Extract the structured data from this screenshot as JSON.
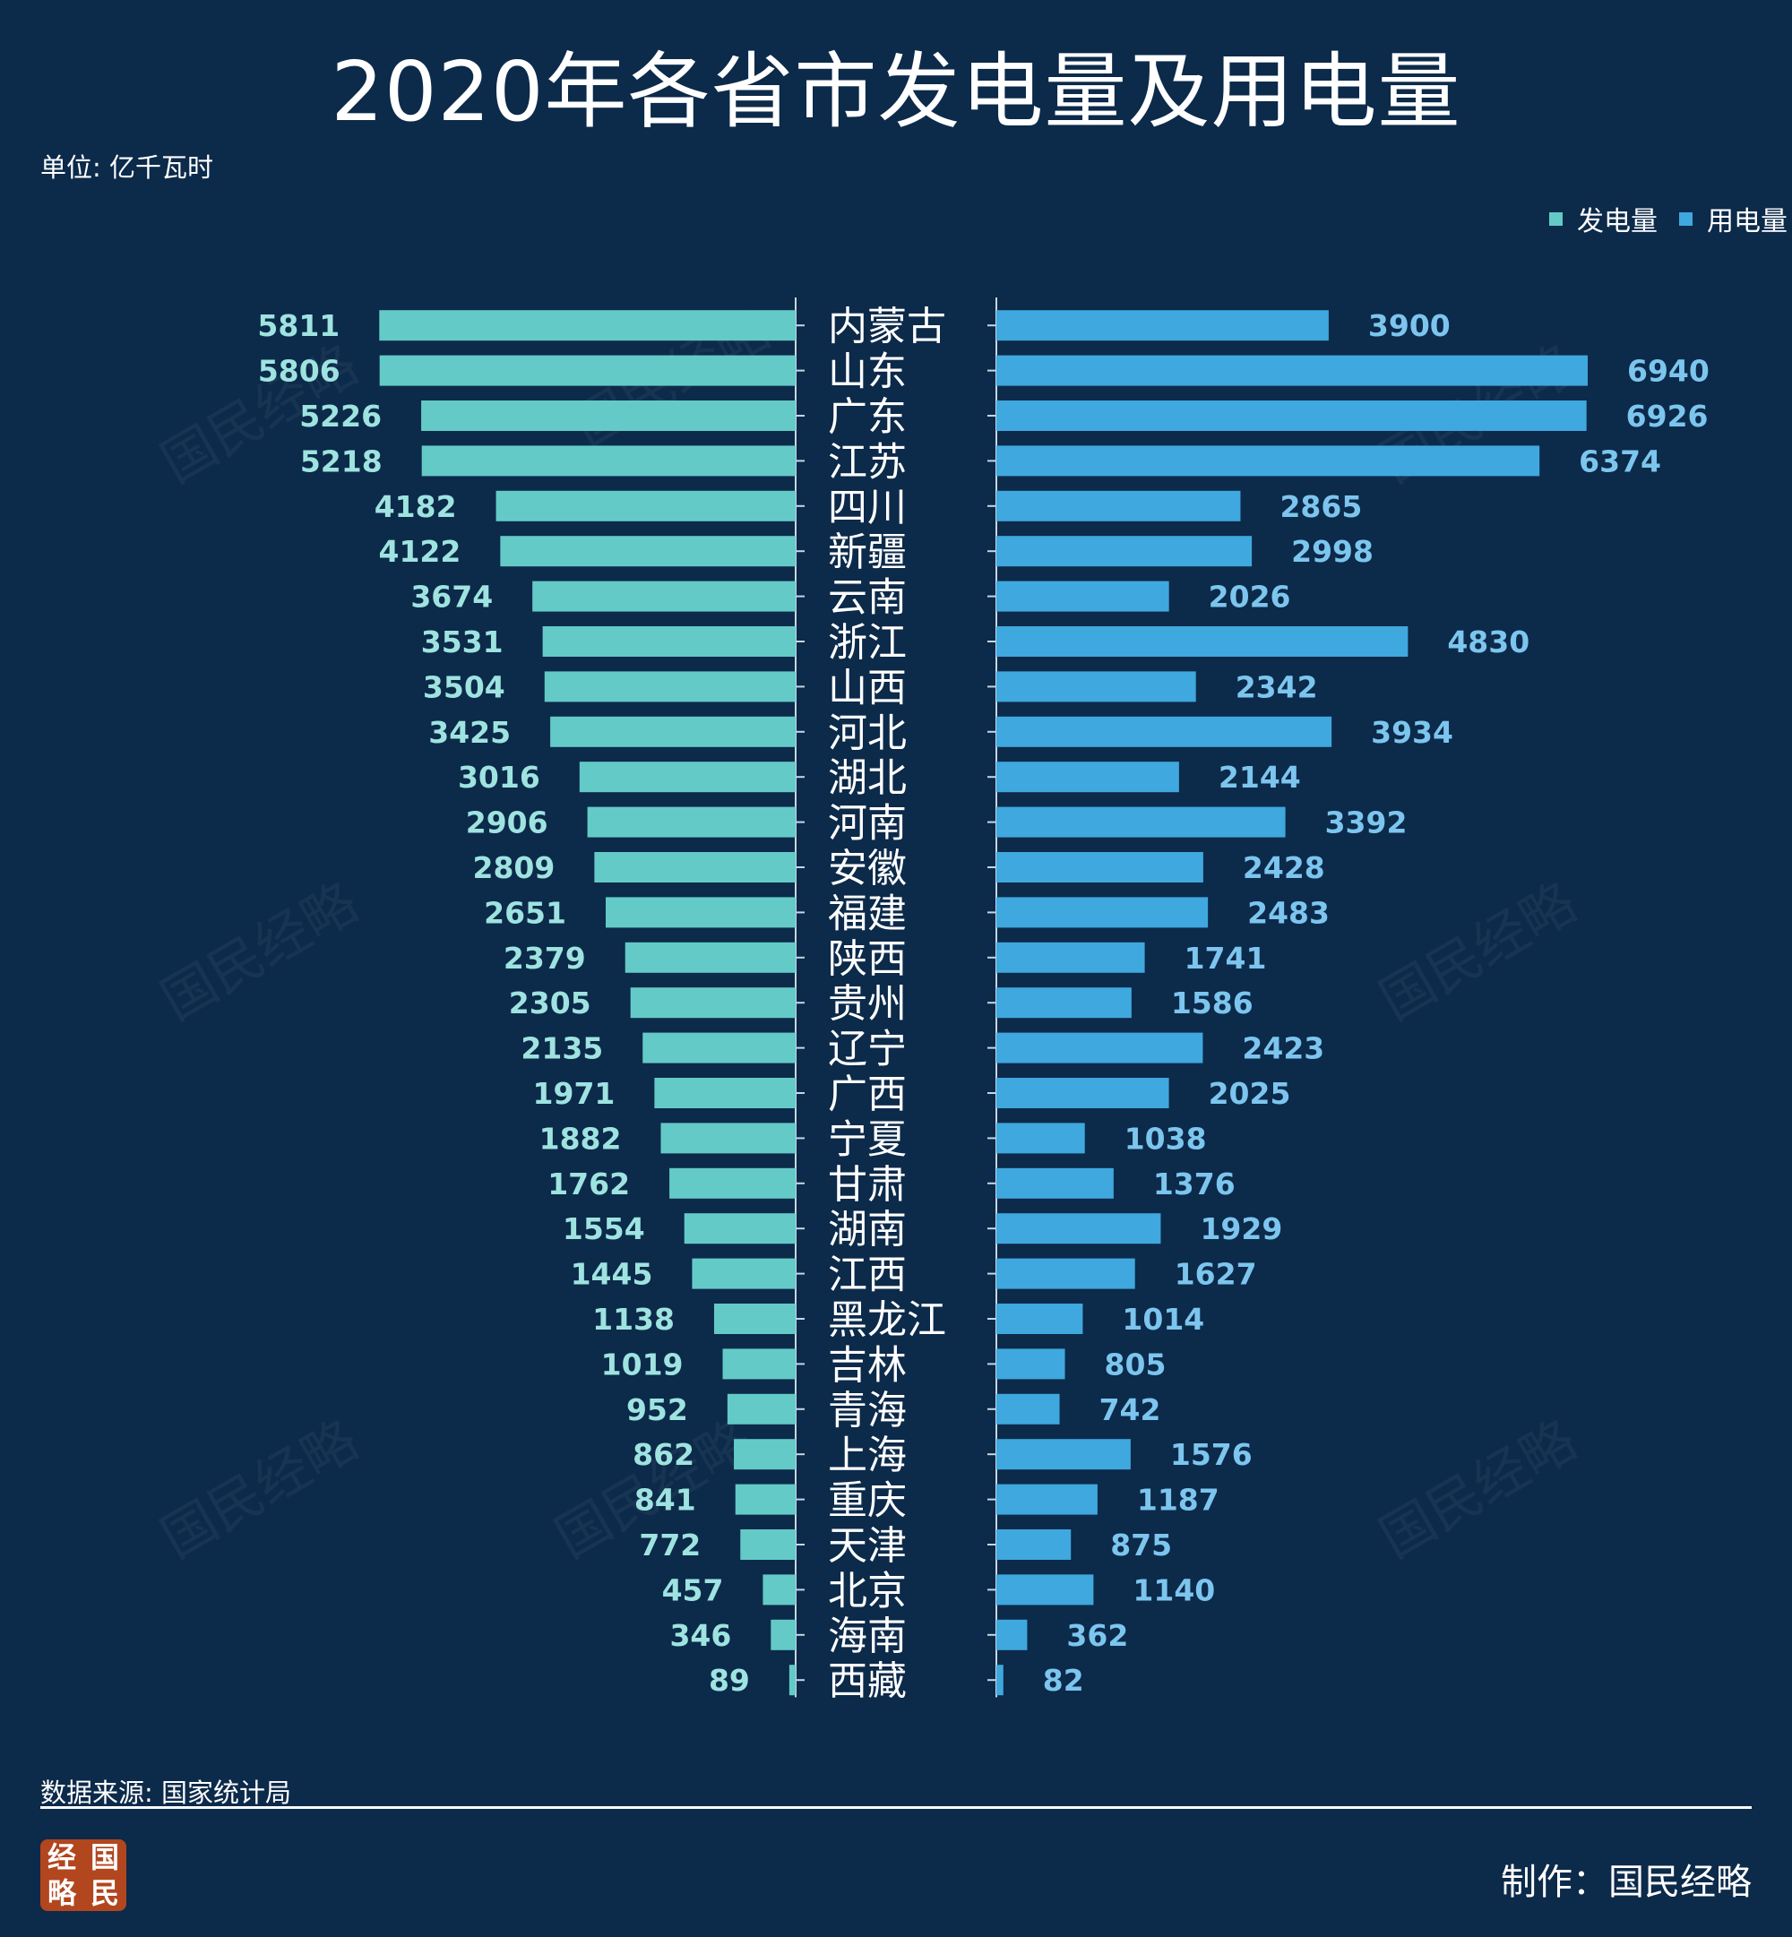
{
  "header": {
    "title": "2020年各省市发电量及用电量",
    "unit": "单位: 亿千瓦时"
  },
  "legend": {
    "generation": "发电量",
    "consumption": "用电量"
  },
  "footer": {
    "source": "数据来源: 国家统计局",
    "credit": "制作：国民经略",
    "logo": [
      "经",
      "国",
      "略",
      "民"
    ]
  },
  "watermark": "国民经略",
  "colors": {
    "background": "#0c2a4a",
    "generation": "#64cac8",
    "consumption": "#3fa8de",
    "generation_label": "#9ee3e0",
    "consumption_label": "#7cc5ee"
  },
  "chart_data": {
    "type": "bar",
    "orientation": "horizontal-butterfly",
    "categories": [
      "内蒙古",
      "山东",
      "广东",
      "江苏",
      "四川",
      "新疆",
      "云南",
      "浙江",
      "山西",
      "河北",
      "湖北",
      "河南",
      "安徽",
      "福建",
      "陕西",
      "贵州",
      "辽宁",
      "广西",
      "宁夏",
      "甘肃",
      "湖南",
      "江西",
      "黑龙江",
      "吉林",
      "青海",
      "上海",
      "重庆",
      "天津",
      "北京",
      "海南",
      "西藏"
    ],
    "series": [
      {
        "name": "发电量",
        "side": "left",
        "values": [
          5811,
          5806,
          5226,
          5218,
          4182,
          4122,
          3674,
          3531,
          3504,
          3425,
          3016,
          2906,
          2809,
          2651,
          2379,
          2305,
          2135,
          1971,
          1882,
          1762,
          1554,
          1445,
          1138,
          1019,
          952,
          862,
          841,
          772,
          457,
          346,
          89
        ]
      },
      {
        "name": "用电量",
        "side": "right",
        "values": [
          3900,
          6940,
          6926,
          6374,
          2865,
          2998,
          2026,
          4830,
          2342,
          3934,
          2144,
          3392,
          2428,
          2483,
          1741,
          1586,
          2423,
          2025,
          1038,
          1376,
          1929,
          1627,
          1014,
          805,
          742,
          1576,
          1187,
          875,
          1140,
          362,
          82
        ]
      }
    ],
    "legend_position": "top-right",
    "grid": false,
    "data_labels": true
  }
}
